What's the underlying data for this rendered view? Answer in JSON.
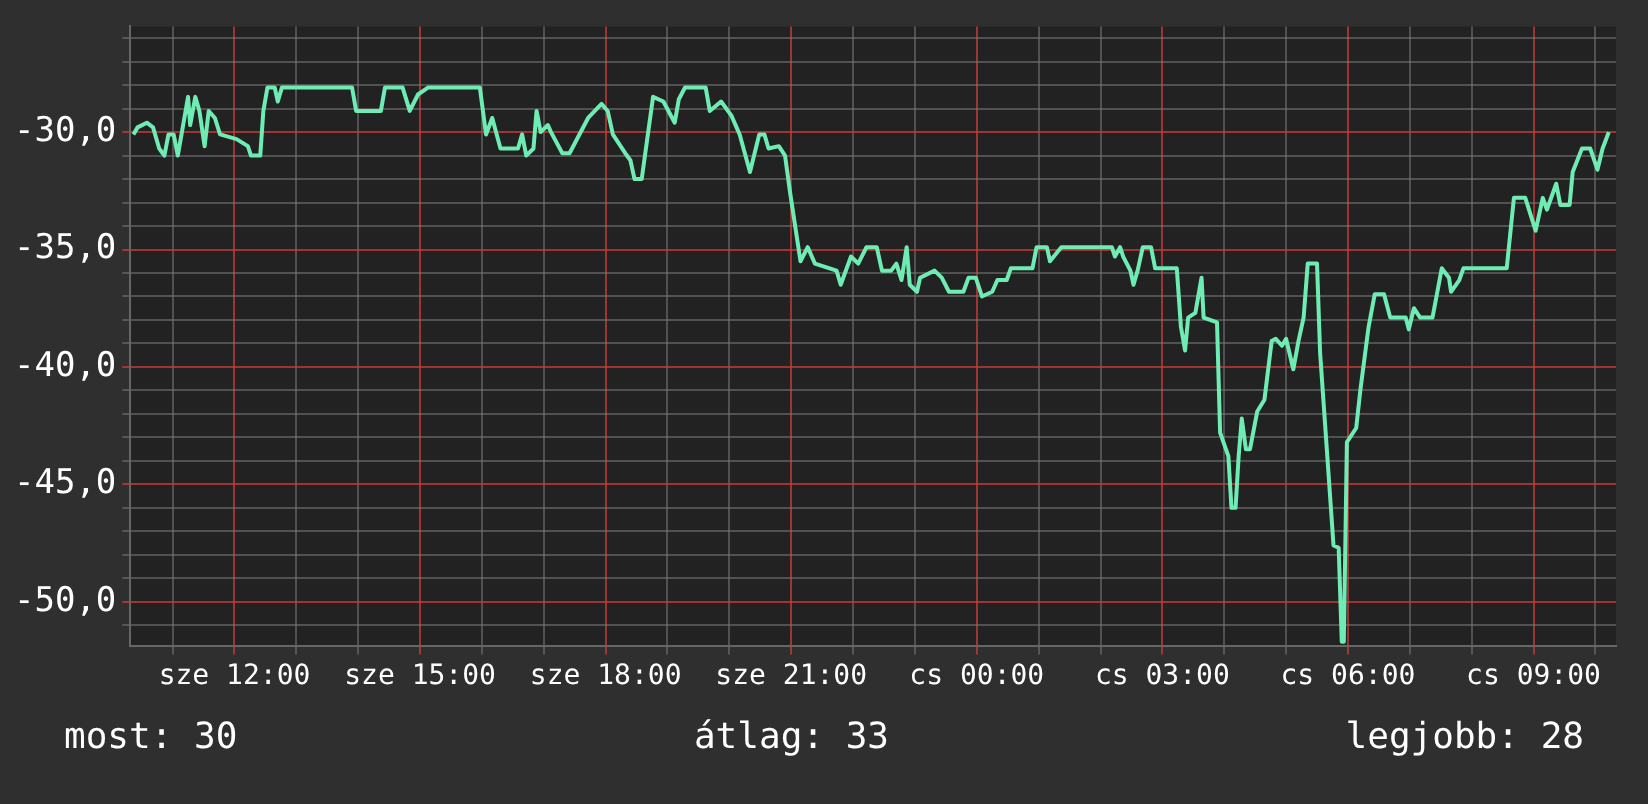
{
  "chart_data": {
    "type": "step",
    "xlim": [
      "--01-03T10:19",
      "--01-04T10:20"
    ],
    "xticks": [
      {
        "value": "--01-03T11:00",
        "label": null
      },
      {
        "value": "--01-03T12:00",
        "label": "sze 12:00"
      },
      {
        "value": "--01-03T13:00",
        "label": null
      },
      {
        "value": "--01-03T14:00",
        "label": null
      },
      {
        "value": "--01-03T15:00",
        "label": "sze 15:00"
      },
      {
        "value": "--01-03T16:00",
        "label": null
      },
      {
        "value": "--01-03T17:00",
        "label": null
      },
      {
        "value": "--01-03T18:00",
        "label": "sze 18:00"
      },
      {
        "value": "--01-03T19:00",
        "label": null
      },
      {
        "value": "--01-03T20:00",
        "label": null
      },
      {
        "value": "--01-03T21:00",
        "label": "sze 21:00"
      },
      {
        "value": "--01-03T22:00",
        "label": null
      },
      {
        "value": "--01-03T23:00",
        "label": null
      },
      {
        "value": "--01-04T00:00",
        "label": "cs 00:00"
      },
      {
        "value": "--01-04T01:00",
        "label": null
      },
      {
        "value": "--01-04T02:00",
        "label": null
      },
      {
        "value": "--01-04T03:00",
        "label": "cs 03:00"
      },
      {
        "value": "--01-04T04:00",
        "label": null
      },
      {
        "value": "--01-04T05:00",
        "label": null
      },
      {
        "value": "--01-04T06:00",
        "label": "cs 06:00"
      },
      {
        "value": "--01-04T07:00",
        "label": null
      },
      {
        "value": "--01-04T08:00",
        "label": null
      },
      {
        "value": "--01-04T09:00",
        "label": "cs 09:00"
      },
      {
        "value": "--01-04T10:00",
        "label": null
      }
    ],
    "ylim": [
      -51.9,
      -25.5
    ],
    "yticks": [
      {
        "value": -51,
        "label": null
      },
      {
        "value": -50,
        "label": "-50,0"
      },
      {
        "value": -49,
        "label": null
      },
      {
        "value": -48,
        "label": null
      },
      {
        "value": -47,
        "label": null
      },
      {
        "value": -46,
        "label": null
      },
      {
        "value": -45,
        "label": "-45,0"
      },
      {
        "value": -44,
        "label": null
      },
      {
        "value": -43,
        "label": null
      },
      {
        "value": -42,
        "label": null
      },
      {
        "value": -41,
        "label": null
      },
      {
        "value": -40,
        "label": "-40,0"
      },
      {
        "value": -39,
        "label": null
      },
      {
        "value": -38,
        "label": null
      },
      {
        "value": -37,
        "label": null
      },
      {
        "value": -36,
        "label": null
      },
      {
        "value": -35,
        "label": "-35,0"
      },
      {
        "value": -34,
        "label": null
      },
      {
        "value": -33,
        "label": null
      },
      {
        "value": -32,
        "label": null
      },
      {
        "value": -31,
        "label": null
      },
      {
        "value": -30,
        "label": "-30,0"
      },
      {
        "value": -29,
        "label": null
      },
      {
        "value": -28,
        "label": null
      },
      {
        "value": -27,
        "label": null
      },
      {
        "value": -26,
        "label": null
      }
    ],
    "grid": true,
    "legend": false,
    "annotations": [
      "most: 30",
      "átlag: 33",
      "legjobb: 28"
    ],
    "series": [
      {
        "color": "#6eecb4",
        "x": [
          "--01-03T10:22",
          "--01-03T10:26",
          "--01-03T10:35",
          "--01-03T10:41",
          "--01-03T10:47",
          "--01-03T10:52",
          "--01-03T10:56",
          "--01-03T11:01",
          "--01-03T11:05",
          "--01-03T11:09",
          "--01-03T11:15",
          "--01-03T11:17",
          "--01-03T11:22",
          "--01-03T11:26",
          "--01-03T11:31",
          "--01-03T11:35",
          "--01-03T11:41",
          "--01-03T11:46",
          "--01-03T12:02",
          "--01-03T12:13",
          "--01-03T12:16",
          "--01-03T12:25",
          "--01-03T12:28",
          "--01-03T12:32",
          "--01-03T12:39",
          "--01-03T12:42",
          "--01-03T12:46",
          "--01-03T13:54",
          "--01-03T13:58",
          "--01-03T14:22",
          "--01-03T14:26",
          "--01-03T14:43",
          "--01-03T14:50",
          "--01-03T14:58",
          "--01-03T15:08",
          "--01-03T15:58",
          "--01-03T16:04",
          "--01-03T16:10",
          "--01-03T16:18",
          "--01-03T16:35",
          "--01-03T16:39",
          "--01-03T16:43",
          "--01-03T16:50",
          "--01-03T16:53",
          "--01-03T16:57",
          "--01-03T17:04",
          "--01-03T17:07",
          "--01-03T17:18",
          "--01-03T17:25",
          "--01-03T17:43",
          "--01-03T17:56",
          "--01-03T18:02",
          "--01-03T18:07",
          "--01-03T18:19",
          "--01-03T18:24",
          "--01-03T18:28",
          "--01-03T18:35",
          "--01-03T18:46",
          "--01-03T18:56",
          "--01-03T19:07",
          "--01-03T19:11",
          "--01-03T19:17",
          "--01-03T19:37",
          "--01-03T19:41",
          "--01-03T19:52",
          "--01-03T20:02",
          "--01-03T20:10",
          "--01-03T20:20",
          "--01-03T20:29",
          "--01-03T20:34",
          "--01-03T20:38",
          "--01-03T20:48",
          "--01-03T20:54",
          "--01-03T20:59",
          "--01-03T21:09",
          "--01-03T21:16",
          "--01-03T21:23",
          "--01-03T21:44",
          "--01-03T21:48",
          "--01-03T21:58",
          "--01-03T22:05",
          "--01-03T22:13",
          "--01-03T22:23",
          "--01-03T22:28",
          "--01-03T22:37",
          "--01-03T22:42",
          "--01-03T22:47",
          "--01-03T22:52",
          "--01-03T22:55",
          "--01-03T23:02",
          "--01-03T23:05",
          "--01-03T23:19",
          "--01-03T23:26",
          "--01-03T23:33",
          "--01-03T23:47",
          "--01-03T23:52",
          "--01-03T23:59",
          "--01-04T00:05",
          "--01-04T00:15",
          "--01-04T00:20",
          "--01-04T00:29",
          "--01-04T00:33",
          "--01-04T00:54",
          "--01-04T00:58",
          "--01-04T01:08",
          "--01-04T01:11",
          "--01-04T01:22",
          "--01-04T02:11",
          "--01-04T02:14",
          "--01-04T02:19",
          "--01-04T02:22",
          "--01-04T02:29",
          "--01-04T02:32",
          "--01-04T02:36",
          "--01-04T02:41",
          "--01-04T02:49",
          "--01-04T02:53",
          "--01-04T03:14",
          "--01-04T03:18",
          "--01-04T03:22",
          "--01-04T03:25",
          "--01-04T03:32",
          "--01-04T03:38",
          "--01-04T03:40",
          "--01-04T03:53",
          "--01-04T03:56",
          "--01-04T04:04",
          "--01-04T04:07",
          "--01-04T04:11",
          "--01-04T04:14",
          "--01-04T04:17",
          "--01-04T04:21",
          "--01-04T04:25",
          "--01-04T04:32",
          "--01-04T04:39",
          "--01-04T04:46",
          "--01-04T04:50",
          "--01-04T04:56",
          "--01-04T05:00",
          "--01-04T05:07",
          "--01-04T05:12",
          "--01-04T05:17",
          "--01-04T05:21",
          "--01-04T05:30",
          "--01-04T05:33",
          "--01-04T05:46",
          "--01-04T05:51",
          "--01-04T05:54",
          "--01-04T05:56",
          "--01-04T05:59",
          "--01-04T06:08",
          "--01-04T06:12",
          "--01-04T06:20",
          "--01-04T06:26",
          "--01-04T06:35",
          "--01-04T06:41",
          "--01-04T06:56",
          "--01-04T06:59",
          "--01-04T07:04",
          "--01-04T07:10",
          "--01-04T07:22",
          "--01-04T07:31",
          "--01-04T07:38",
          "--01-04T07:40",
          "--01-04T07:48",
          "--01-04T07:52",
          "--01-04T08:34",
          "--01-04T08:41",
          "--01-04T08:52",
          "--01-04T09:02",
          "--01-04T09:09",
          "--01-04T09:13",
          "--01-04T09:22",
          "--01-04T09:26",
          "--01-04T09:35",
          "--01-04T09:38",
          "--01-04T09:47",
          "--01-04T09:55",
          "--01-04T10:02",
          "--01-04T10:07",
          "--01-04T10:13"
        ],
        "values": [
          -30.1,
          -29.8,
          -29.6,
          -29.8,
          -30.7,
          -31.0,
          -30.1,
          -30.1,
          -31.0,
          -30.0,
          -28.5,
          -29.7,
          -28.5,
          -29.1,
          -30.6,
          -29.1,
          -29.4,
          -30.1,
          -30.3,
          -30.6,
          -31.0,
          -31.0,
          -29.1,
          -28.1,
          -28.1,
          -28.7,
          -28.1,
          -28.1,
          -29.1,
          -29.1,
          -28.1,
          -28.1,
          -29.1,
          -28.4,
          -28.1,
          -28.1,
          -30.1,
          -29.4,
          -30.7,
          -30.7,
          -30.1,
          -31.0,
          -30.7,
          -29.1,
          -30.0,
          -29.7,
          -30.0,
          -30.9,
          -30.9,
          -29.4,
          -28.8,
          -29.1,
          -30.1,
          -30.9,
          -31.2,
          -32.0,
          -32.0,
          -28.5,
          -28.7,
          -29.6,
          -28.6,
          -28.1,
          -28.1,
          -29.1,
          -28.7,
          -29.3,
          -30.1,
          -31.7,
          -30.1,
          -30.1,
          -30.7,
          -30.6,
          -31.0,
          -32.6,
          -35.5,
          -34.9,
          -35.6,
          -35.9,
          -36.5,
          -35.3,
          -35.6,
          -34.9,
          -34.9,
          -35.9,
          -35.9,
          -35.6,
          -36.3,
          -34.9,
          -36.5,
          -36.8,
          -36.2,
          -35.9,
          -36.2,
          -36.8,
          -36.8,
          -36.2,
          -36.2,
          -37.0,
          -36.8,
          -36.3,
          -36.3,
          -35.8,
          -35.8,
          -34.9,
          -34.9,
          -35.5,
          -34.9,
          -34.9,
          -35.3,
          -34.9,
          -35.3,
          -35.9,
          -36.5,
          -35.9,
          -34.9,
          -34.9,
          -35.8,
          -35.8,
          -38.3,
          -39.3,
          -37.9,
          -37.7,
          -36.2,
          -37.9,
          -38.1,
          -42.8,
          -43.8,
          -46.0,
          -46.0,
          -43.8,
          -42.2,
          -43.5,
          -43.5,
          -41.9,
          -41.4,
          -38.9,
          -38.8,
          -39.1,
          -38.8,
          -40.1,
          -38.9,
          -37.9,
          -35.6,
          -35.6,
          -39.4,
          -47.6,
          -47.7,
          -51.7,
          -51.7,
          -43.2,
          -42.6,
          -41.0,
          -38.3,
          -36.9,
          -36.9,
          -37.9,
          -37.9,
          -38.4,
          -37.5,
          -37.9,
          -37.9,
          -35.8,
          -36.2,
          -36.8,
          -36.3,
          -35.8,
          -35.8,
          -32.8,
          -32.8,
          -34.2,
          -32.8,
          -33.3,
          -32.2,
          -33.1,
          -33.1,
          -31.7,
          -30.7,
          -30.7,
          -31.6,
          -30.7,
          -30.0
        ]
      }
    ]
  }
}
